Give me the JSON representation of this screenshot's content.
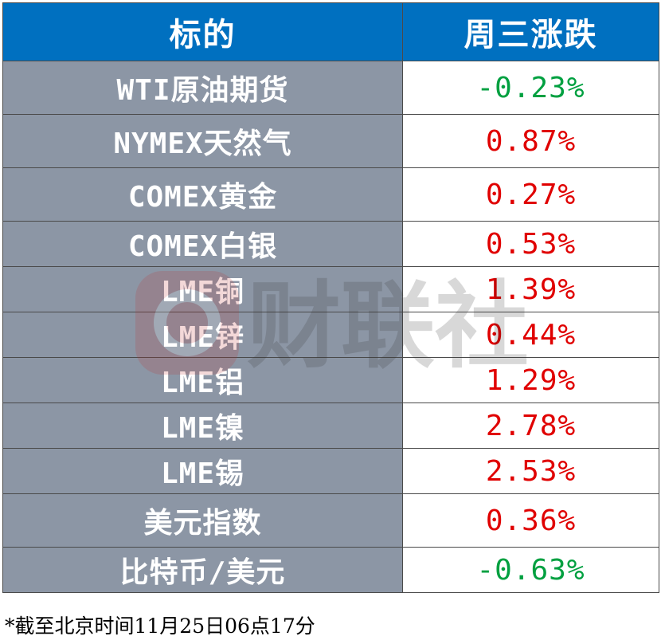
{
  "header": {
    "col_asset": "标的",
    "col_change": "周三涨跌"
  },
  "rows": [
    {
      "name": "WTI原油期货",
      "change": "-0.23%",
      "dir": "down"
    },
    {
      "name": "NYMEX天然气",
      "change": "0.87%",
      "dir": "up"
    },
    {
      "name": "COMEX黄金",
      "change": "0.27%",
      "dir": "up"
    },
    {
      "name": "COMEX白银",
      "change": "0.53%",
      "dir": "up"
    },
    {
      "name": "LME铜",
      "change": "1.39%",
      "dir": "up"
    },
    {
      "name": "LME锌",
      "change": "0.44%",
      "dir": "up"
    },
    {
      "name": "LME铝",
      "change": "1.29%",
      "dir": "up"
    },
    {
      "name": "LME镍",
      "change": "2.78%",
      "dir": "up"
    },
    {
      "name": "LME锡",
      "change": "2.53%",
      "dir": "up"
    },
    {
      "name": "美元指数",
      "change": "0.36%",
      "dir": "up"
    },
    {
      "name": "比特币/美元",
      "change": "-0.63%",
      "dir": "down"
    }
  ],
  "footnote": "*截至北京时间11月25日06点17分",
  "watermark": "财联社",
  "colors": {
    "header_bg": "#0070c0",
    "name_bg": "#8c96a5",
    "up": "#e00000",
    "down": "#00a040"
  }
}
